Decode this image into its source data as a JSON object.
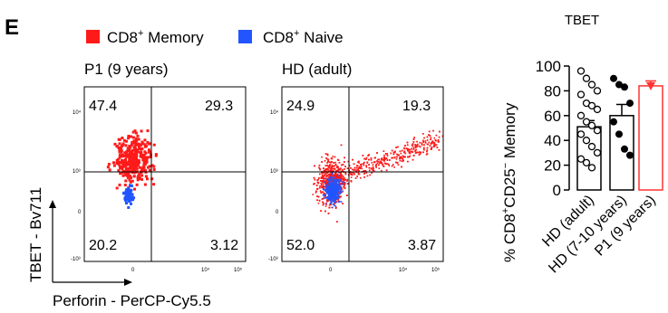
{
  "panel_letter": "E",
  "legend": [
    {
      "label": "CD8",
      "sup": "+",
      "suffix": " Memory",
      "color": "#ff1a1a"
    },
    {
      "label": "CD8",
      "sup": "+",
      "suffix": " Naive",
      "color": "#2255ff"
    }
  ],
  "axis": {
    "y_label": "TBET - Bv711",
    "x_label": "Perforin - PerCP-Cy5.5"
  },
  "chart_data": [
    {
      "type": "scatter",
      "title": "P1 (9 years)",
      "quadrants": {
        "upper_left": "47.4",
        "upper_right": "29.3",
        "lower_left": "20.2",
        "lower_right": "3.12"
      },
      "y_ticks": [
        "10⁴",
        "10³",
        "0",
        "-10³"
      ],
      "x_ticks": [
        "0",
        "10⁴",
        "10⁵"
      ],
      "populations": [
        {
          "name": "CD8+ Memory",
          "color": "#ff1a1a"
        },
        {
          "name": "CD8+ Naive",
          "color": "#2255ff"
        }
      ]
    },
    {
      "type": "scatter",
      "title": "HD (adult)",
      "quadrants": {
        "upper_left": "24.9",
        "upper_right": "19.3",
        "lower_left": "52.0",
        "lower_right": "3.87"
      },
      "y_ticks": [
        "10⁴",
        "10³",
        "0",
        "-10³"
      ],
      "x_ticks": [
        "0",
        "10⁴",
        "10⁵"
      ],
      "populations": [
        {
          "name": "CD8+ Memory",
          "color": "#ff1a1a"
        },
        {
          "name": "CD8+ Naive",
          "color": "#2255ff"
        }
      ]
    },
    {
      "type": "bar",
      "title": "TBET",
      "ylabel": "% CD8⁺CD25⁻ Memory",
      "ylim": [
        0,
        100
      ],
      "yticks": [
        0,
        20,
        40,
        60,
        80,
        100
      ],
      "categories": [
        "HD (adult)",
        "HD (7-10 years)",
        "P1 (9 years)"
      ],
      "values": [
        51,
        60,
        84
      ],
      "errors": [
        5,
        9,
        4
      ],
      "colors": [
        "#000000",
        "#000000",
        "#ff3333"
      ],
      "points": [
        [
          96,
          90,
          85,
          80,
          77,
          70,
          68,
          65,
          60,
          55,
          52,
          48,
          45,
          40,
          35,
          30,
          25,
          22,
          18
        ],
        [
          90,
          85,
          83,
          70,
          55,
          45,
          33,
          28
        ],
        [
          84
        ]
      ],
      "point_styles": [
        "open",
        "filled",
        "filled-triangle"
      ]
    }
  ]
}
